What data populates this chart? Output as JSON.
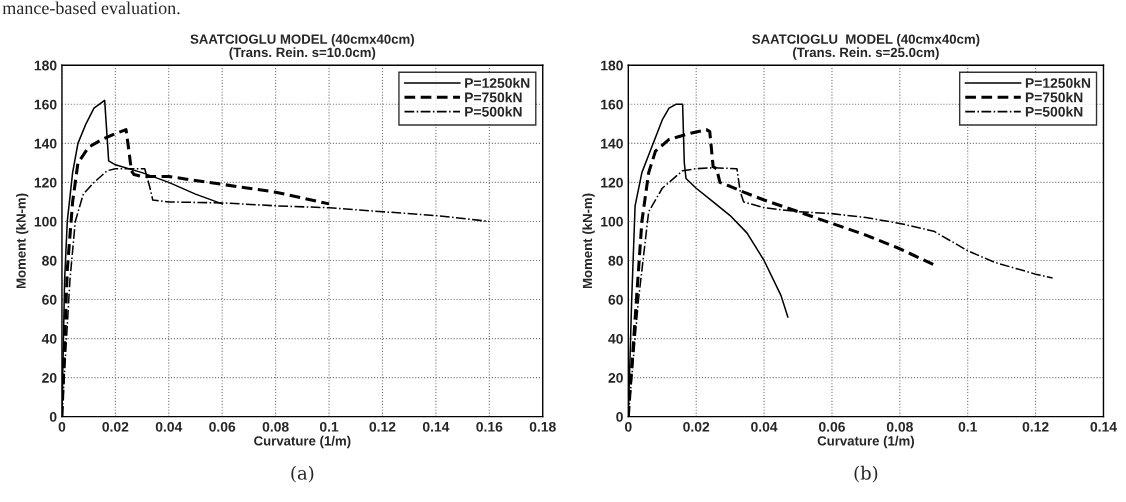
{
  "chart_data": [
    {
      "type": "line",
      "title": "SAATCIOGLU MODEL (40cmx40cm)",
      "subtitle": "(Trans. Rein. s=10.0cm)",
      "xlabel": "Curvature (1/m)",
      "ylabel": "Moment (kN-m)",
      "xlim": [
        0,
        0.18
      ],
      "ylim": [
        0,
        180
      ],
      "xticks": [
        0,
        0.02,
        0.04,
        0.06,
        0.08,
        0.1,
        0.12,
        0.14,
        0.16,
        0.18
      ],
      "yticks": [
        0,
        20,
        40,
        60,
        80,
        100,
        120,
        140,
        160,
        180
      ],
      "grid": true,
      "legend": "top right",
      "marker": "none",
      "annotations": [
        "mance-based evaluation.",
        "(a)"
      ],
      "series": [
        {
          "name": "P=1250kN",
          "color": "#000000",
          "line_style": "solid",
          "x": [
            0,
            0.001,
            0.002,
            0.004,
            0.006,
            0.009,
            0.012,
            0.016,
            0.0175,
            0.02,
            0.03,
            0.04,
            0.05,
            0.06
          ],
          "values": [
            0,
            70,
            100,
            125,
            140,
            150,
            158,
            162,
            131,
            129,
            125,
            120,
            114,
            109
          ]
        },
        {
          "name": "P=750kN",
          "color": "#000000",
          "line_style": "dashed",
          "x": [
            0,
            0.002,
            0.004,
            0.006,
            0.01,
            0.015,
            0.02,
            0.024,
            0.025,
            0.026,
            0.027,
            0.03,
            0.04,
            0.06,
            0.08,
            0.09,
            0.1
          ],
          "values": [
            0,
            75,
            110,
            130,
            138,
            142,
            145,
            147,
            137,
            126,
            124,
            123,
            123,
            119,
            115,
            112,
            109
          ]
        },
        {
          "name": "P=500kN",
          "color": "#000000",
          "line_style": "dashdot",
          "x": [
            0,
            0.003,
            0.005,
            0.008,
            0.012,
            0.017,
            0.02,
            0.025,
            0.031,
            0.033,
            0.034,
            0.04,
            0.06,
            0.08,
            0.1,
            0.12,
            0.14,
            0.16
          ],
          "values": [
            0,
            70,
            100,
            114,
            120,
            126,
            127,
            127,
            127,
            117,
            111,
            110,
            109.5,
            108,
            107,
            105,
            103,
            100
          ]
        }
      ]
    },
    {
      "type": "line",
      "title": "SAATCIOGLU  MODEL (40cmx40cm)",
      "subtitle": "(Trans. Rein. s=25.0cm)",
      "xlabel": "Curvature (1/m)",
      "ylabel": "Moment (kN-m)",
      "xlim": [
        0,
        0.14
      ],
      "ylim": [
        0,
        180
      ],
      "xticks": [
        0,
        0.02,
        0.04,
        0.06,
        0.08,
        0.1,
        0.12,
        0.14
      ],
      "yticks": [
        0,
        20,
        40,
        60,
        80,
        100,
        120,
        140,
        160,
        180
      ],
      "grid": true,
      "legend": "top right",
      "marker": "none",
      "annotations": [
        "(b)"
      ],
      "series": [
        {
          "name": "P=1250kN",
          "color": "#000000",
          "line_style": "solid",
          "x": [
            0,
            0.001,
            0.002,
            0.004,
            0.006,
            0.01,
            0.012,
            0.014,
            0.016,
            0.0165,
            0.017,
            0.02,
            0.025,
            0.03,
            0.035,
            0.04,
            0.045,
            0.047
          ],
          "values": [
            0,
            60,
            108,
            125,
            134,
            152,
            158,
            160,
            160,
            130,
            122,
            117,
            110,
            103,
            94,
            80,
            62,
            51
          ]
        },
        {
          "name": "P=750kN",
          "color": "#000000",
          "line_style": "dashed",
          "x": [
            0,
            0.002,
            0.004,
            0.006,
            0.008,
            0.012,
            0.018,
            0.023,
            0.024,
            0.025,
            0.026,
            0.027,
            0.03,
            0.034,
            0.04,
            0.05,
            0.06,
            0.07,
            0.08,
            0.091
          ],
          "values": [
            0,
            50,
            100,
            125,
            136,
            142,
            145,
            147,
            146,
            128,
            127,
            120,
            118,
            115,
            111,
            105,
            99,
            93,
            86,
            77
          ]
        },
        {
          "name": "P=500kN",
          "color": "#000000",
          "line_style": "dashdot",
          "x": [
            0,
            0.003,
            0.006,
            0.01,
            0.016,
            0.02,
            0.025,
            0.032,
            0.033,
            0.034,
            0.04,
            0.05,
            0.06,
            0.07,
            0.08,
            0.09,
            0.1,
            0.108,
            0.12,
            0.125
          ],
          "values": [
            0,
            60,
            105,
            117,
            126,
            127,
            127.5,
            127,
            115,
            110,
            107,
            105,
            104,
            102,
            99,
            95,
            85,
            79,
            73,
            71
          ]
        }
      ]
    }
  ]
}
